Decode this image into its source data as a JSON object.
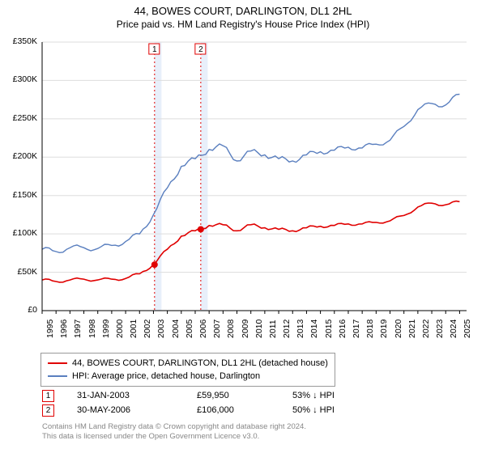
{
  "title": "44, BOWES COURT, DARLINGTON, DL1 2HL",
  "subtitle": "Price paid vs. HM Land Registry's House Price Index (HPI)",
  "chart": {
    "type": "line",
    "background_color": "#ffffff",
    "grid_color": "#dddddd",
    "axis_color": "#000000",
    "x_years": [
      1995,
      1996,
      1997,
      1998,
      1999,
      2000,
      2001,
      2002,
      2003,
      2004,
      2005,
      2006,
      2007,
      2008,
      2009,
      2010,
      2011,
      2012,
      2013,
      2014,
      2015,
      2016,
      2017,
      2018,
      2019,
      2020,
      2021,
      2022,
      2023,
      2024,
      2025
    ],
    "xlim": [
      1995,
      2025.5
    ],
    "ylim": [
      0,
      350000
    ],
    "ytick_step": 50000,
    "yticks": [
      "£0",
      "£50K",
      "£100K",
      "£150K",
      "£200K",
      "£250K",
      "£300K",
      "£350K"
    ],
    "label_fontsize": 10.5,
    "highlight_bands": [
      {
        "x": 2003.08,
        "width_years": 0.5,
        "color": "#e8effa"
      },
      {
        "x": 2006.4,
        "width_years": 0.5,
        "color": "#e8effa"
      }
    ],
    "marker_lines": [
      {
        "x": 2003.08,
        "label": "1",
        "color": "#e00000",
        "dash": "2,3"
      },
      {
        "x": 2006.4,
        "label": "2",
        "color": "#e00000",
        "dash": "2,3"
      }
    ],
    "series": [
      {
        "name": "property",
        "legend_label": "44, BOWES COURT, DARLINGTON, DL1 2HL (detached house)",
        "color": "#e00000",
        "line_width": 1.6,
        "points": [
          [
            1995,
            40000
          ],
          [
            1996,
            38000
          ],
          [
            1997,
            40000
          ],
          [
            1998,
            41000
          ],
          [
            1999,
            40000
          ],
          [
            2000,
            41000
          ],
          [
            2001,
            42000
          ],
          [
            2002,
            48000
          ],
          [
            2003,
            60000
          ],
          [
            2004,
            80000
          ],
          [
            2005,
            97000
          ],
          [
            2006,
            104000
          ],
          [
            2007,
            111000
          ],
          [
            2008,
            112000
          ],
          [
            2009,
            104000
          ],
          [
            2010,
            112000
          ],
          [
            2011,
            108000
          ],
          [
            2012,
            106000
          ],
          [
            2013,
            104000
          ],
          [
            2014,
            108000
          ],
          [
            2015,
            110000
          ],
          [
            2016,
            111000
          ],
          [
            2017,
            113000
          ],
          [
            2018,
            113000
          ],
          [
            2019,
            115000
          ],
          [
            2020,
            117000
          ],
          [
            2021,
            124000
          ],
          [
            2022,
            135000
          ],
          [
            2023,
            140000
          ],
          [
            2024,
            138000
          ],
          [
            2025,
            142000
          ]
        ],
        "sale_markers": [
          {
            "x": 2003.08,
            "y": 59950
          },
          {
            "x": 2006.4,
            "y": 106000
          }
        ]
      },
      {
        "name": "hpi",
        "legend_label": "HPI: Average price, detached house, Darlington",
        "color": "#5a7fbf",
        "line_width": 1.4,
        "points": [
          [
            1995,
            80000
          ],
          [
            1996,
            77000
          ],
          [
            1997,
            82000
          ],
          [
            1998,
            82000
          ],
          [
            1999,
            81000
          ],
          [
            2000,
            85000
          ],
          [
            2001,
            90000
          ],
          [
            2002,
            100000
          ],
          [
            2003,
            125000
          ],
          [
            2004,
            160000
          ],
          [
            2005,
            188000
          ],
          [
            2006,
            198000
          ],
          [
            2007,
            210000
          ],
          [
            2008,
            215000
          ],
          [
            2009,
            195000
          ],
          [
            2010,
            208000
          ],
          [
            2011,
            203000
          ],
          [
            2012,
            198000
          ],
          [
            2013,
            195000
          ],
          [
            2014,
            203000
          ],
          [
            2015,
            207000
          ],
          [
            2016,
            209000
          ],
          [
            2017,
            213000
          ],
          [
            2018,
            212000
          ],
          [
            2019,
            217000
          ],
          [
            2020,
            222000
          ],
          [
            2021,
            240000
          ],
          [
            2022,
            262000
          ],
          [
            2023,
            270000
          ],
          [
            2024,
            268000
          ],
          [
            2025,
            282000
          ]
        ]
      }
    ]
  },
  "legend": {
    "items": [
      {
        "color": "#e00000",
        "label": "44, BOWES COURT, DARLINGTON, DL1 2HL (detached house)"
      },
      {
        "color": "#5a7fbf",
        "label": "HPI: Average price, detached house, Darlington"
      }
    ]
  },
  "sales": [
    {
      "n": "1",
      "date": "31-JAN-2003",
      "price": "£59,950",
      "pct": "53% ↓ HPI"
    },
    {
      "n": "2",
      "date": "30-MAY-2006",
      "price": "£106,000",
      "pct": "50% ↓ HPI"
    }
  ],
  "attribution": {
    "line1": "Contains HM Land Registry data © Crown copyright and database right 2024.",
    "line2": "This data is licensed under the Open Government Licence v3.0."
  }
}
